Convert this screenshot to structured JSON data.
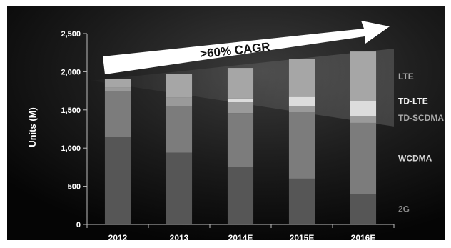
{
  "chart_data": {
    "type": "bar",
    "stacked": true,
    "title": "",
    "xlabel": "",
    "ylabel": "Units (M)",
    "ylim": [
      0,
      2500
    ],
    "yticks": [
      0,
      500,
      1000,
      1500,
      2000,
      2500
    ],
    "ytick_labels": [
      "0",
      "500",
      "1,000",
      "1,500",
      "2,000",
      "2,500"
    ],
    "categories": [
      "2012",
      "2013",
      "2014E",
      "2015E",
      "2016E"
    ],
    "series": [
      {
        "name": "2G",
        "values": [
          1150,
          940,
          750,
          600,
          400
        ],
        "color": "#565656"
      },
      {
        "name": "WCDMA",
        "values": [
          600,
          610,
          710,
          870,
          930
        ],
        "color": "#7c7c7c"
      },
      {
        "name": "TD-SCDMA",
        "values": [
          40,
          110,
          140,
          80,
          85
        ],
        "color": "#9a9a9a"
      },
      {
        "name": "TD-LTE",
        "values": [
          0,
          0,
          50,
          120,
          200
        ],
        "color": "#dcdcdc"
      },
      {
        "name": "LTE",
        "values": [
          120,
          310,
          400,
          500,
          650
        ],
        "color": "#a6a6a6"
      }
    ],
    "legend_placement": "right",
    "grid": false,
    "annotation": ">60% CAGR",
    "background": "#0c0c0c"
  }
}
